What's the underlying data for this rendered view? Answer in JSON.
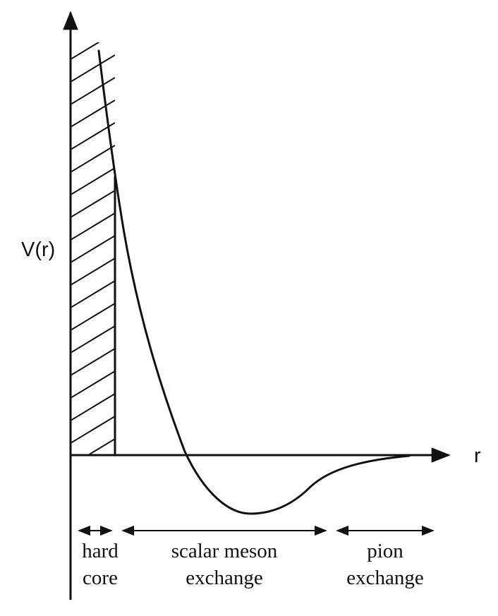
{
  "axes": {
    "y_label": "V(r)",
    "x_label": "r"
  },
  "regions": [
    {
      "line1": "hard",
      "line2": "core"
    },
    {
      "line1": "scalar meson",
      "line2": "exchange"
    },
    {
      "line1": "pion",
      "line2": "exchange"
    }
  ],
  "colors": {
    "ink": "#111111",
    "background": "#ffffff"
  }
}
